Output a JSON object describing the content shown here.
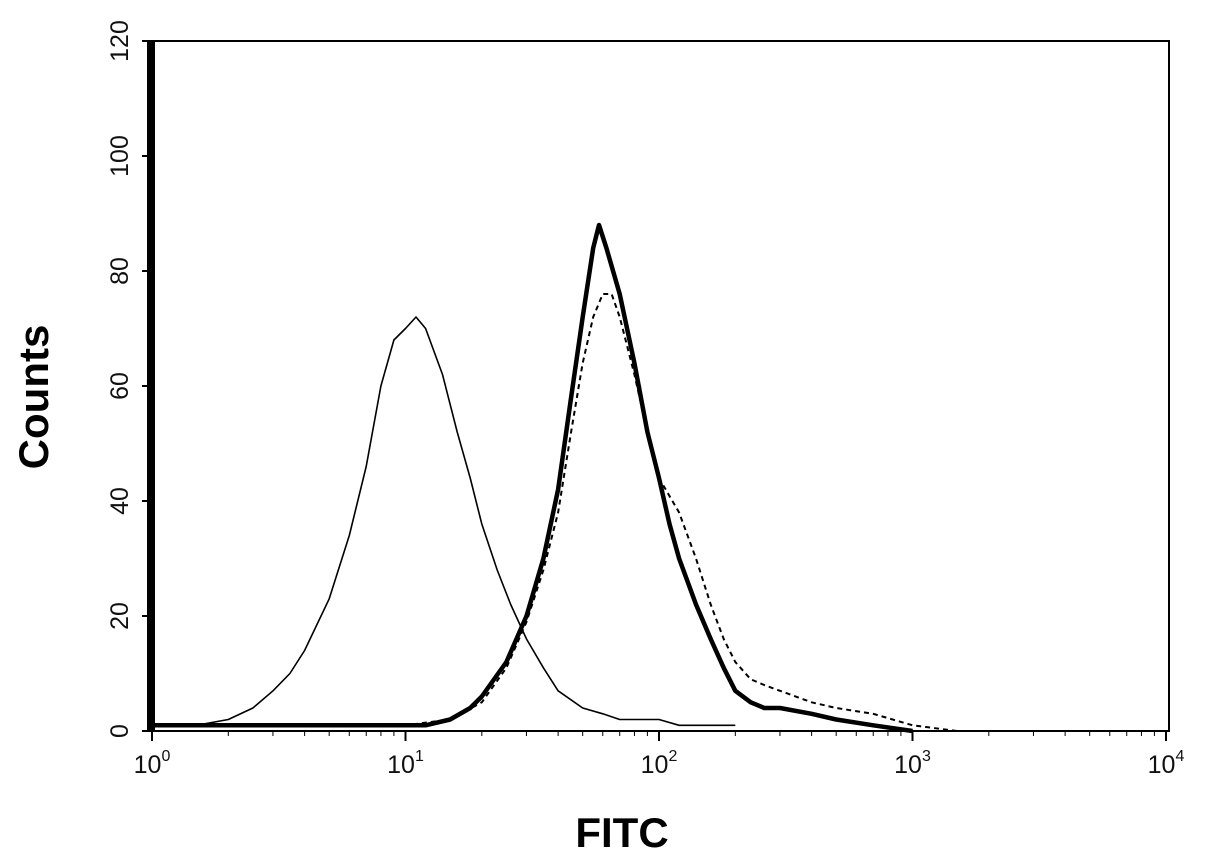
{
  "chart_data": {
    "type": "line",
    "title": "",
    "xlabel": "FITC",
    "ylabel": "Counts",
    "xscale": "log",
    "xlim": [
      1,
      10000
    ],
    "ylim": [
      0,
      120
    ],
    "grid": false,
    "legend": "none",
    "x_ticks": [
      {
        "base": "10",
        "exp": "0",
        "value": 1
      },
      {
        "base": "10",
        "exp": "1",
        "value": 10
      },
      {
        "base": "10",
        "exp": "2",
        "value": 100
      },
      {
        "base": "10",
        "exp": "3",
        "value": 1000
      },
      {
        "base": "10",
        "exp": "4",
        "value": 10000
      }
    ],
    "y_ticks": [
      "0",
      "20",
      "40",
      "60",
      "80",
      "100",
      "120"
    ],
    "series": [
      {
        "style": "thin-solid",
        "color": "#000000",
        "x": [
          1,
          1.5,
          2,
          2.5,
          3,
          3.5,
          4,
          5,
          6,
          7,
          8,
          9,
          10,
          11,
          12,
          14,
          16,
          18,
          20,
          23,
          26,
          30,
          35,
          40,
          50,
          60,
          70,
          80,
          100,
          120,
          150,
          200
        ],
        "y": [
          1,
          1,
          2,
          4,
          7,
          10,
          14,
          23,
          34,
          46,
          60,
          68,
          70,
          72,
          70,
          62,
          52,
          44,
          36,
          28,
          22,
          16,
          11,
          7,
          4,
          3,
          2,
          2,
          2,
          1,
          1,
          1
        ]
      },
      {
        "style": "thick-solid",
        "color": "#000000",
        "x": [
          1,
          5,
          10,
          12,
          15,
          18,
          20,
          25,
          30,
          35,
          40,
          45,
          50,
          55,
          58,
          62,
          70,
          80,
          90,
          100,
          110,
          120,
          140,
          160,
          180,
          200,
          230,
          260,
          300,
          400,
          500,
          700,
          1000
        ],
        "y": [
          1,
          1,
          1,
          1,
          2,
          4,
          6,
          12,
          20,
          30,
          42,
          58,
          72,
          84,
          88,
          84,
          76,
          64,
          52,
          44,
          36,
          30,
          22,
          16,
          11,
          7,
          5,
          4,
          4,
          3,
          2,
          1,
          0
        ]
      },
      {
        "style": "dashed",
        "color": "#000000",
        "x": [
          1,
          5,
          10,
          15,
          20,
          25,
          30,
          35,
          40,
          45,
          50,
          55,
          60,
          65,
          70,
          80,
          90,
          100,
          120,
          140,
          160,
          180,
          200,
          230,
          260,
          300,
          400,
          500,
          700,
          1000,
          1500,
          2000
        ],
        "y": [
          1,
          1,
          1,
          2,
          5,
          11,
          19,
          28,
          38,
          52,
          64,
          72,
          76,
          76,
          72,
          62,
          52,
          44,
          38,
          30,
          22,
          16,
          12,
          9,
          8,
          7,
          5,
          4,
          3,
          1,
          0,
          0
        ]
      }
    ]
  }
}
